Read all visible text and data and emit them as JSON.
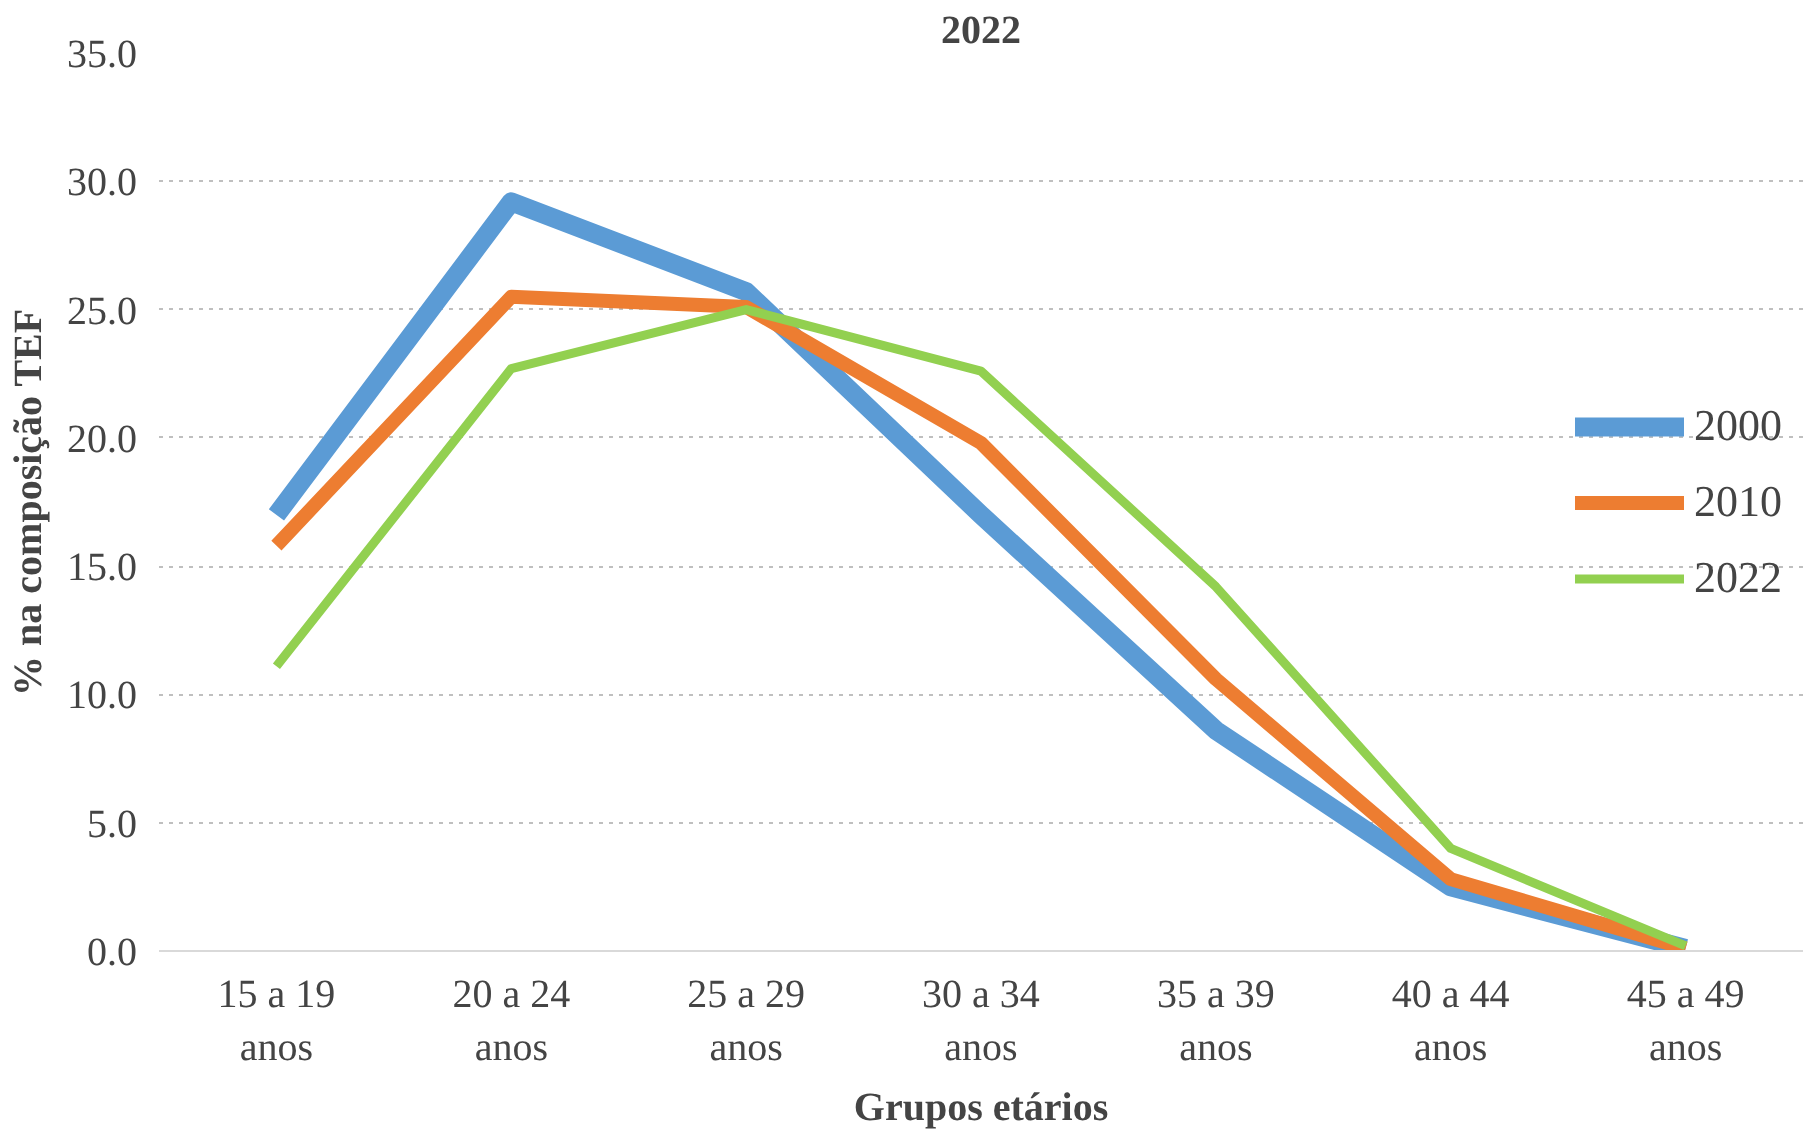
{
  "chart_data": {
    "type": "line",
    "title": "2022",
    "xlabel": "Grupos etários",
    "ylabel": "% na composição TEF",
    "categories": [
      "15 a 19\nanos",
      "20 a 24\nanos",
      "25 a 29\nanos",
      "30 a 34\nanos",
      "35 a 39\nanos",
      "40 a 44\nanos",
      "45 a 49\nanos"
    ],
    "series": [
      {
        "name": "2000",
        "color": "#5b9bd5",
        "values": [
          17.0,
          29.2,
          25.7,
          17.0,
          8.6,
          2.5,
          0.1
        ]
      },
      {
        "name": "2010",
        "color": "#ed7d31",
        "values": [
          15.8,
          25.5,
          25.1,
          19.8,
          10.6,
          2.8,
          0.1
        ]
      },
      {
        "name": "2022",
        "color": "#92d050",
        "values": [
          11.1,
          22.7,
          25.0,
          22.6,
          14.2,
          4.0,
          0.2
        ]
      }
    ],
    "ylim": [
      0,
      35
    ],
    "yticks": [
      {
        "value": 0,
        "label": "0.0"
      },
      {
        "value": 5,
        "label": "5.0"
      },
      {
        "value": 10,
        "label": "10.0"
      },
      {
        "value": 15,
        "label": "15.0"
      },
      {
        "value": 20,
        "label": "20.0"
      },
      {
        "value": 25,
        "label": "25.0"
      },
      {
        "value": 30,
        "label": "30.0"
      },
      {
        "value": 35,
        "label": "35.0"
      }
    ],
    "grid": "y",
    "legend": "right",
    "marker": "none",
    "line_style": "solid"
  }
}
